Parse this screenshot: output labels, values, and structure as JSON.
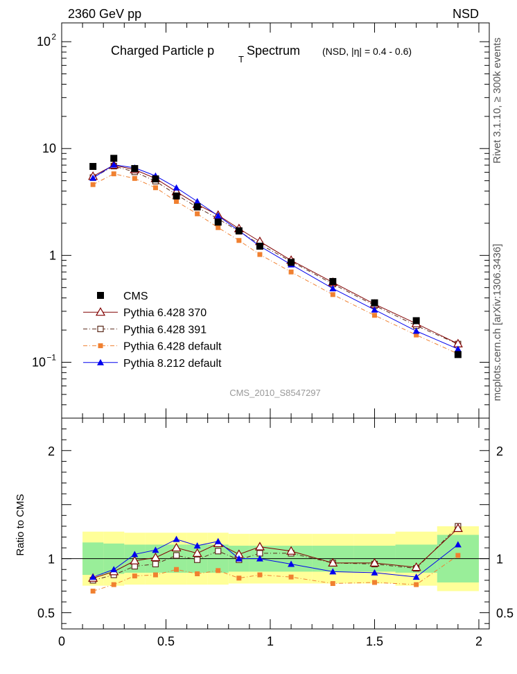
{
  "header": {
    "energy_label": "2360 GeV pp",
    "process_label": "NSD"
  },
  "side_labels": {
    "rivet": "Rivet 3.1.10, ≥ 300k events",
    "source": "mcplots.cern.ch [arXiv:1306.3436]"
  },
  "colors": {
    "cms": "#000000",
    "p370": "#800000",
    "p391": "#5a2a1a",
    "pdef": "#f08030",
    "p8": "#0000ee",
    "band_outer": "#ffff99",
    "band_inner": "#99ee99"
  },
  "chart_data": [
    {
      "type": "line",
      "title_main": "Charged Particle p",
      "title_sub": "T",
      "title_rest": " Spectrum",
      "title_extra": "(NSD, |η| = 0.4 - 0.6)",
      "watermark": "CMS_2010_S8547297",
      "yscale": "log",
      "ylim": [
        0.03,
        150
      ],
      "xlim": [
        0,
        2.05
      ],
      "ytick_labels": [
        {
          "value": 100,
          "mantissa": "10",
          "exp": "2"
        },
        {
          "value": 10,
          "mantissa": "10",
          "exp": ""
        },
        {
          "value": 1,
          "mantissa": "1",
          "exp": ""
        },
        {
          "value": 0.1,
          "mantissa": "10",
          "exp": "−1"
        }
      ],
      "legend": [
        {
          "key": "cms",
          "label": "CMS",
          "marker": "square-filled",
          "line": "none"
        },
        {
          "key": "p370",
          "label": "Pythia 6.428 370",
          "marker": "triangle-open",
          "line": "solid"
        },
        {
          "key": "p391",
          "label": "Pythia 6.428 391",
          "marker": "square-open",
          "line": "dashdot"
        },
        {
          "key": "pdef",
          "label": "Pythia 6.428 default",
          "marker": "square-filled-small",
          "line": "dashdot"
        },
        {
          "key": "p8",
          "label": "Pythia 8.212 default",
          "marker": "triangle-filled",
          "line": "solid"
        }
      ],
      "x": [
        0.15,
        0.25,
        0.35,
        0.45,
        0.55,
        0.65,
        0.75,
        0.85,
        0.95,
        1.1,
        1.3,
        1.5,
        1.7,
        1.9
      ],
      "series": [
        {
          "key": "cms",
          "name": "CMS",
          "values": [
            6.8,
            8.1,
            6.5,
            5.2,
            3.6,
            2.85,
            2.05,
            1.7,
            1.22,
            0.86,
            0.57,
            0.36,
            0.245,
            0.118
          ]
        },
        {
          "key": "p370",
          "name": "Pythia 6.428 370",
          "values": [
            5.5,
            7.0,
            6.35,
            5.25,
            3.95,
            3.0,
            2.38,
            1.78,
            1.35,
            0.9,
            0.56,
            0.35,
            0.23,
            0.149
          ]
        },
        {
          "key": "p391",
          "name": "Pythia 6.428 391",
          "values": [
            5.35,
            6.85,
            6.05,
            4.95,
            3.7,
            2.82,
            2.2,
            1.68,
            1.27,
            0.88,
            0.54,
            0.34,
            0.22,
            0.148
          ]
        },
        {
          "key": "pdef",
          "name": "Pythia 6.428 default",
          "values": [
            4.6,
            5.8,
            5.25,
            4.3,
            3.2,
            2.45,
            1.82,
            1.38,
            1.02,
            0.7,
            0.43,
            0.275,
            0.18,
            0.12
          ]
        },
        {
          "key": "p8",
          "name": "Pythia 8.212 default",
          "values": [
            5.3,
            7.05,
            6.6,
            5.55,
            4.3,
            3.2,
            2.35,
            1.7,
            1.22,
            0.82,
            0.49,
            0.31,
            0.196,
            0.133
          ]
        }
      ]
    },
    {
      "type": "line",
      "ylabel": "Ratio to CMS",
      "ylim": [
        0.35,
        2.3
      ],
      "xlim": [
        0,
        2.05
      ],
      "ytick_labels": [
        {
          "value": 0.5,
          "label": "0.5"
        },
        {
          "value": 1,
          "label": "1"
        },
        {
          "value": 2,
          "label": "2"
        }
      ],
      "xtick_labels": [
        {
          "value": 0,
          "label": "0"
        },
        {
          "value": 0.5,
          "label": "0.5"
        },
        {
          "value": 1,
          "label": "1"
        },
        {
          "value": 1.5,
          "label": "1.5"
        },
        {
          "value": 2,
          "label": "2"
        }
      ],
      "x": [
        0.15,
        0.25,
        0.35,
        0.45,
        0.55,
        0.65,
        0.75,
        0.85,
        0.95,
        1.1,
        1.3,
        1.5,
        1.7,
        1.9
      ],
      "band_bins": [
        {
          "x0": 0.1,
          "x1": 0.2,
          "inner": 0.15,
          "outer": 0.25
        },
        {
          "x0": 0.2,
          "x1": 0.3,
          "inner": 0.14,
          "outer": 0.25
        },
        {
          "x0": 0.3,
          "x1": 0.4,
          "inner": 0.13,
          "outer": 0.24
        },
        {
          "x0": 0.4,
          "x1": 0.5,
          "inner": 0.13,
          "outer": 0.24
        },
        {
          "x0": 0.5,
          "x1": 0.6,
          "inner": 0.13,
          "outer": 0.24
        },
        {
          "x0": 0.6,
          "x1": 0.7,
          "inner": 0.13,
          "outer": 0.24
        },
        {
          "x0": 0.7,
          "x1": 0.8,
          "inner": 0.13,
          "outer": 0.24
        },
        {
          "x0": 0.8,
          "x1": 0.9,
          "inner": 0.12,
          "outer": 0.23
        },
        {
          "x0": 0.9,
          "x1": 1.0,
          "inner": 0.12,
          "outer": 0.23
        },
        {
          "x0": 1.0,
          "x1": 1.2,
          "inner": 0.12,
          "outer": 0.23
        },
        {
          "x0": 1.2,
          "x1": 1.4,
          "inner": 0.12,
          "outer": 0.23
        },
        {
          "x0": 1.4,
          "x1": 1.6,
          "inner": 0.12,
          "outer": 0.23
        },
        {
          "x0": 1.6,
          "x1": 1.8,
          "inner": 0.13,
          "outer": 0.25
        },
        {
          "x0": 1.8,
          "x1": 2.0,
          "inner": 0.22,
          "outer": 0.3
        }
      ],
      "series": [
        {
          "key": "p370",
          "name": "Pythia 6.428 370",
          "values": [
            0.82,
            0.88,
            0.98,
            1.01,
            1.1,
            1.05,
            1.14,
            1.04,
            1.11,
            1.07,
            0.96,
            0.96,
            0.92,
            1.28
          ]
        },
        {
          "key": "p391",
          "name": "Pythia 6.428 391",
          "values": [
            0.8,
            0.85,
            0.93,
            0.95,
            1.03,
            0.99,
            1.07,
            0.99,
            1.05,
            1.05,
            0.96,
            0.95,
            0.91,
            1.3
          ]
        },
        {
          "key": "pdef",
          "name": "Pythia 6.428 default",
          "values": [
            0.7,
            0.76,
            0.84,
            0.85,
            0.9,
            0.86,
            0.89,
            0.82,
            0.85,
            0.83,
            0.77,
            0.78,
            0.76,
            1.03
          ]
        },
        {
          "key": "p8",
          "name": "Pythia 8.212 default",
          "values": [
            0.83,
            0.9,
            1.04,
            1.08,
            1.18,
            1.12,
            1.16,
            1.0,
            1.0,
            0.95,
            0.88,
            0.87,
            0.83,
            1.13
          ]
        }
      ]
    }
  ]
}
